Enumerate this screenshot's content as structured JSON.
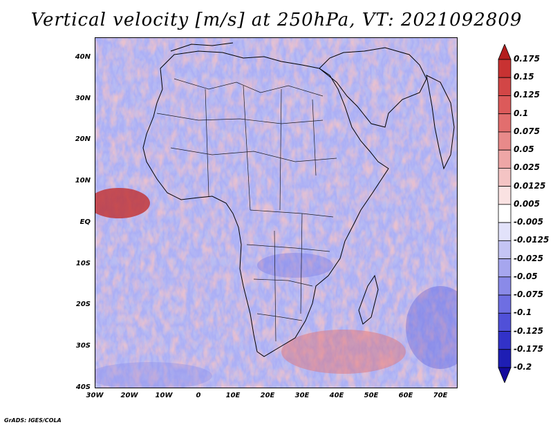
{
  "title": "Vertical velocity [m/s] at 250hPa, VT: 2021092809",
  "credit": "GrADS: IGES/COLA",
  "map": {
    "region": "Africa",
    "lat_range": [
      -40,
      45
    ],
    "lon_range": [
      -30,
      75
    ],
    "lat_ticks": [
      "40N",
      "30N",
      "20N",
      "10N",
      "EQ",
      "10S",
      "20S",
      "30S",
      "40S"
    ],
    "lon_ticks": [
      "30W",
      "20W",
      "10W",
      "0",
      "10E",
      "20E",
      "30E",
      "40E",
      "50E",
      "60E",
      "70E"
    ]
  },
  "colorbar": {
    "labels": [
      "0.175",
      "0.15",
      "0.125",
      "0.1",
      "0.075",
      "0.05",
      "0.025",
      "0.0125",
      "0.005",
      "-0.005",
      "-0.0125",
      "-0.025",
      "-0.05",
      "-0.075",
      "-0.1",
      "-0.125",
      "-0.175",
      "-0.2"
    ],
    "colors": [
      "#b41e1e",
      "#c83232",
      "#d24646",
      "#dc5a5a",
      "#e26e6e",
      "#e88a8a",
      "#eea6a6",
      "#f4c4c4",
      "#fae2e2",
      "#ffffff",
      "#e2e2fa",
      "#c4c4f4",
      "#a6a6ee",
      "#8a8ae8",
      "#6e6ee2",
      "#5050d8",
      "#3232c8",
      "#1e1eb4",
      "#140a9c"
    ]
  }
}
